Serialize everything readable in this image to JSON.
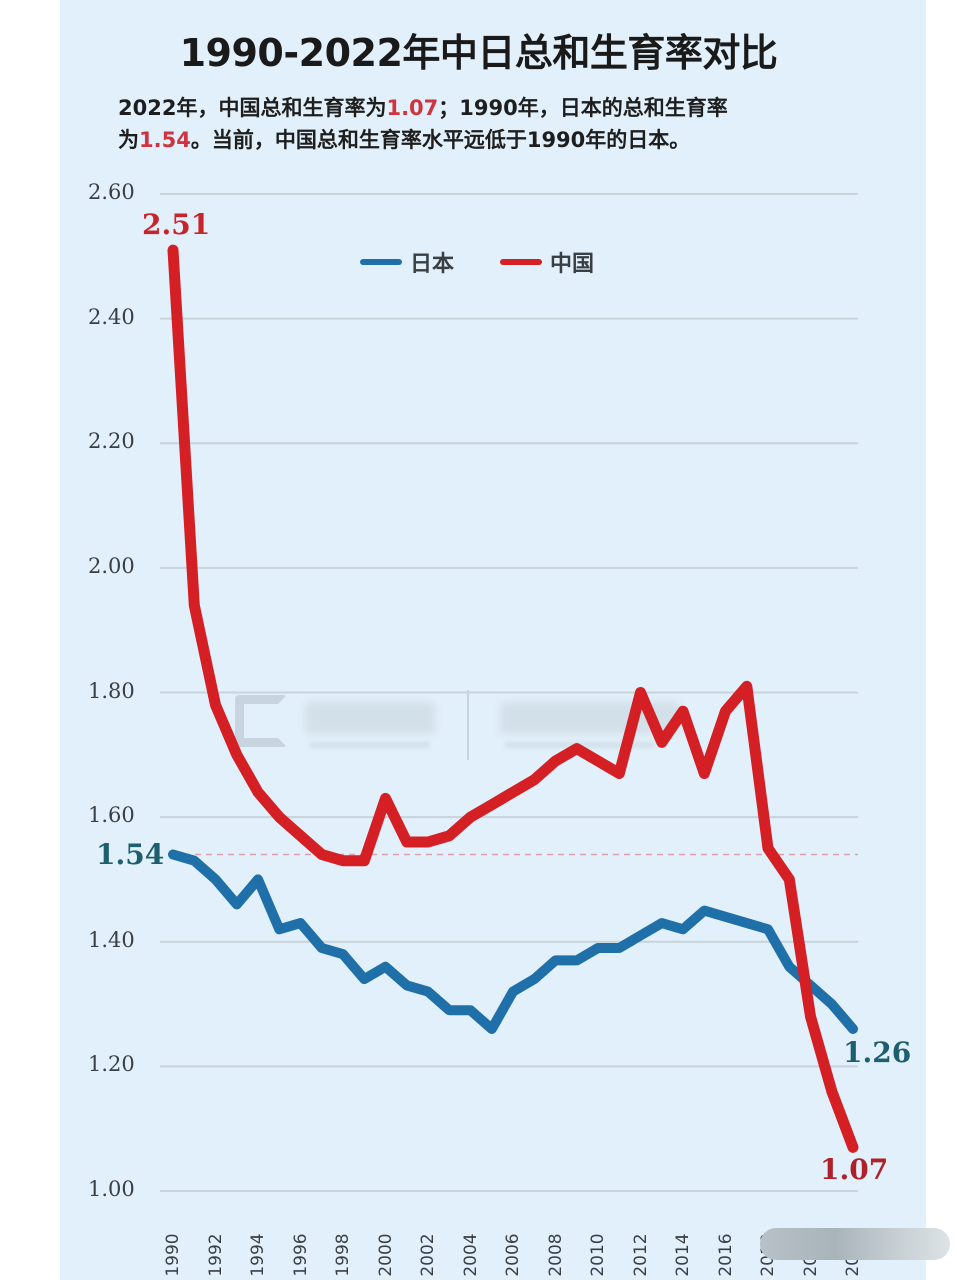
{
  "header": {
    "title": "1990-2022年中日总和生育率对比",
    "subtitle_line1_a": "2022年，中国总和生育率为",
    "subtitle_line1_hl": "1.07",
    "subtitle_line1_b": "；1990年，日本的总和生育率",
    "subtitle_line2_a": "为",
    "subtitle_line2_hl": "1.54",
    "subtitle_line2_b": "。当前，中国总和生育率水平远低于1990年的日本。"
  },
  "legend": {
    "items": [
      {
        "label": "日本",
        "color": "#1f6fa8"
      },
      {
        "label": "中国",
        "color": "#d41f24"
      }
    ]
  },
  "annotations": {
    "china_start": {
      "text": "2.51",
      "color": "#c8242b"
    },
    "japan_start": {
      "text": "1.54",
      "color": "#1d5f6e"
    },
    "japan_end": {
      "text": "1.26",
      "color": "#1d5f6e"
    },
    "china_end": {
      "text": "1.07",
      "color": "#b0202a"
    }
  },
  "colors": {
    "background": "#e2f0fb",
    "gridline": "#c8d3da",
    "reference_line": "#e0a0a8",
    "japan": "#1f6fa8",
    "china": "#d41f24"
  },
  "chart_data": {
    "type": "line",
    "title": "1990-2022年中日总和生育率对比",
    "subtitle": "2022年，中国总和生育率为1.07；1990年，日本的总和生育率为1.54。当前，中国总和生育率水平远低于1990年的日本。",
    "xlabel": "",
    "ylabel": "",
    "ylim": [
      1.0,
      2.6
    ],
    "yticks": [
      "2.60",
      "2.40",
      "2.20",
      "2.00",
      "1.80",
      "1.60",
      "1.40",
      "1.20",
      "1.00"
    ],
    "xticks": [
      "1990",
      "1992",
      "1994",
      "1996",
      "1998",
      "2000",
      "2002",
      "2004",
      "2006",
      "2008",
      "2010",
      "2012",
      "2014",
      "2016",
      "2018",
      "2020",
      "2022"
    ],
    "grid": true,
    "legend_position": "top-center",
    "reference_line": {
      "y": 1.54,
      "style": "dashed",
      "label": "1.54"
    },
    "x": [
      1990,
      1991,
      1992,
      1993,
      1994,
      1995,
      1996,
      1997,
      1998,
      1999,
      2000,
      2001,
      2002,
      2003,
      2004,
      2005,
      2006,
      2007,
      2008,
      2009,
      2010,
      2011,
      2012,
      2013,
      2014,
      2015,
      2016,
      2017,
      2018,
      2019,
      2020,
      2021,
      2022
    ],
    "series": [
      {
        "name": "日本",
        "color": "#1f6fa8",
        "values": [
          1.54,
          1.53,
          1.5,
          1.46,
          1.5,
          1.42,
          1.43,
          1.39,
          1.38,
          1.34,
          1.36,
          1.33,
          1.32,
          1.29,
          1.29,
          1.26,
          1.32,
          1.34,
          1.37,
          1.37,
          1.39,
          1.39,
          1.41,
          1.43,
          1.42,
          1.45,
          1.44,
          1.43,
          1.42,
          1.36,
          1.33,
          1.3,
          1.26
        ]
      },
      {
        "name": "中国",
        "color": "#d41f24",
        "values": [
          2.51,
          1.94,
          1.78,
          1.7,
          1.64,
          1.6,
          1.57,
          1.54,
          1.53,
          1.53,
          1.63,
          1.56,
          1.56,
          1.57,
          1.6,
          1.62,
          1.64,
          1.66,
          1.69,
          1.71,
          1.69,
          1.67,
          1.8,
          1.72,
          1.77,
          1.67,
          1.77,
          1.81,
          1.55,
          1.5,
          1.28,
          1.16,
          1.07
        ]
      }
    ],
    "annotations": [
      {
        "series": "中国",
        "x": 1990,
        "text": "2.51"
      },
      {
        "series": "日本",
        "x": 1990,
        "text": "1.54"
      },
      {
        "series": "日本",
        "x": 2022,
        "text": "1.26"
      },
      {
        "series": "中国",
        "x": 2022,
        "text": "1.07"
      }
    ]
  }
}
